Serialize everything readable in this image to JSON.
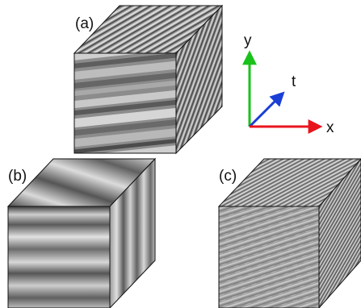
{
  "panels": [
    {
      "id": "a",
      "label": "(a)"
    },
    {
      "id": "b",
      "label": "(b)"
    },
    {
      "id": "c",
      "label": "(c)"
    }
  ],
  "axes": {
    "x": {
      "label": "x",
      "color": "#e8141c"
    },
    "y": {
      "label": "y",
      "color": "#19c21a"
    },
    "t": {
      "label": "t",
      "color": "#1a3fd6"
    }
  }
}
